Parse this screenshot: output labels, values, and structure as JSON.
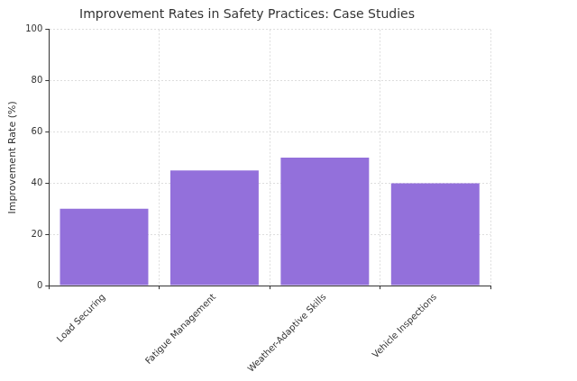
{
  "chart_data": {
    "type": "bar",
    "title": "Improvement Rates in Safety Practices: Case Studies",
    "y_label": "Improvement Rate (%)",
    "categories": [
      "Load Securing",
      "Fatigue Management",
      "Weather-Adaptive Skills",
      "Vehicle Inspections"
    ],
    "values": [
      30,
      45,
      50,
      40
    ],
    "color": "#9370db",
    "ylim": [
      0,
      100
    ],
    "yticks": [
      0,
      20,
      40,
      60,
      80,
      100
    ],
    "grid": true
  }
}
